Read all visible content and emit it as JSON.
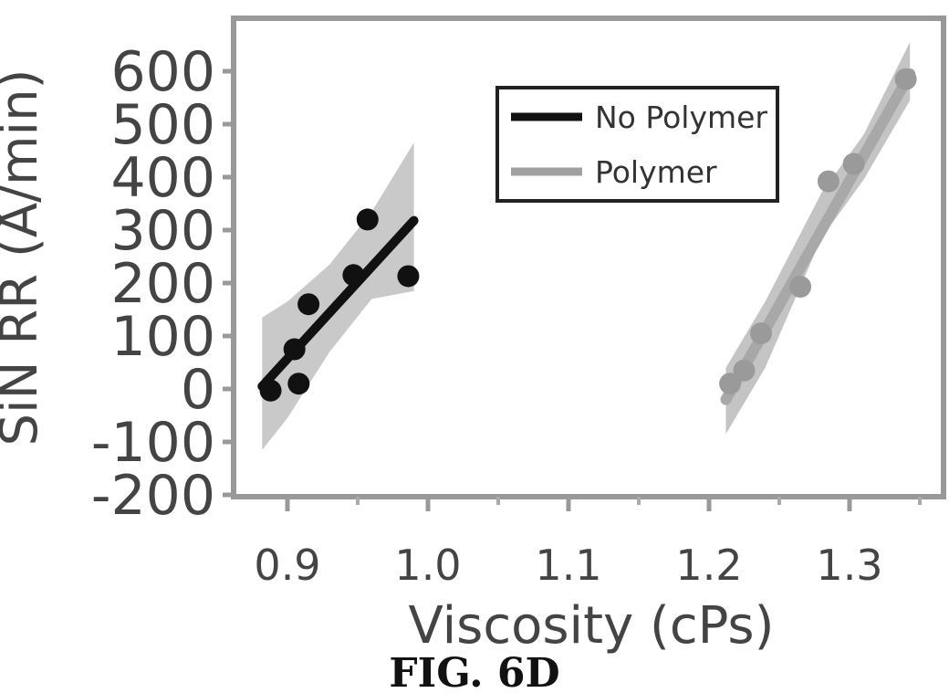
{
  "figure_caption": "FIG. 6D",
  "chart_data": {
    "type": "scatter",
    "title": "",
    "xlabel": "Viscosity (cPs)",
    "ylabel": "SiN RR (Å/min)",
    "xlim": [
      0.83,
      1.36
    ],
    "ylim": [
      -200,
      690
    ],
    "x_ticks": [
      "0.9",
      "1.0",
      "1.1",
      "1.2",
      "1.3"
    ],
    "y_ticks": [
      "600",
      "500",
      "400",
      "300",
      "200",
      "100",
      "0",
      "-100",
      "-200"
    ],
    "grid": false,
    "legend_position": "top-center",
    "series": [
      {
        "name": "No Polymer",
        "color": "#111111",
        "points": [
          [
            0.888,
            -3
          ],
          [
            0.905,
            75
          ],
          [
            0.908,
            10
          ],
          [
            0.915,
            160
          ],
          [
            0.947,
            215
          ],
          [
            0.957,
            320
          ],
          [
            0.986,
            213
          ]
        ],
        "fit": [
          [
            0.882,
            5
          ],
          [
            0.99,
            318
          ]
        ],
        "band_upper": [
          [
            0.882,
            135
          ],
          [
            0.9,
            165
          ],
          [
            0.93,
            235
          ],
          [
            0.96,
            335
          ],
          [
            0.99,
            465
          ]
        ],
        "band_lower": [
          [
            0.882,
            -115
          ],
          [
            0.9,
            -55
          ],
          [
            0.93,
            70
          ],
          [
            0.96,
            170
          ],
          [
            0.99,
            185
          ]
        ]
      },
      {
        "name": "Polymer",
        "color": "#9a9a9a",
        "points": [
          [
            1.215,
            10
          ],
          [
            1.225,
            35
          ],
          [
            1.237,
            105
          ],
          [
            1.265,
            193
          ],
          [
            1.285,
            392
          ],
          [
            1.303,
            425
          ],
          [
            1.34,
            585
          ]
        ],
        "fit": [
          [
            1.212,
            -20
          ],
          [
            1.343,
            595
          ]
        ],
        "band_upper": [
          [
            1.212,
            40
          ],
          [
            1.24,
            165
          ],
          [
            1.28,
            370
          ],
          [
            1.31,
            480
          ],
          [
            1.343,
            655
          ]
        ],
        "band_lower": [
          [
            1.212,
            -85
          ],
          [
            1.24,
            40
          ],
          [
            1.28,
            285
          ],
          [
            1.31,
            395
          ],
          [
            1.343,
            545
          ]
        ]
      }
    ]
  }
}
